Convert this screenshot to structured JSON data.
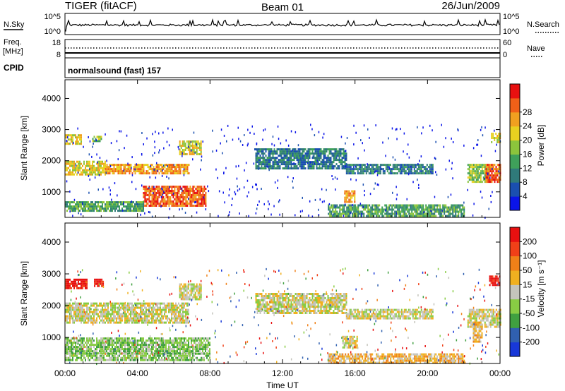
{
  "header": {
    "radar": "TIGER (fitACF)",
    "beam": "Beam 01",
    "date": "26/Jun/2009"
  },
  "strip_panels": {
    "nsky": {
      "label": "N.Sky",
      "tick_top": "10^5",
      "tick_bottom": "10^0"
    },
    "nsearch": {
      "label": "N.Search",
      "tick_top": "10^5",
      "tick_bottom": "10^0"
    },
    "freq": {
      "label_line1": "Freq.",
      "label_line2": "[MHz]",
      "tick_top": "18",
      "tick_bottom": "8"
    },
    "nave": {
      "label": "Nave",
      "tick_top": "60",
      "tick_bottom": "0"
    },
    "cpid": {
      "label": "CPID",
      "value": "normalsound (fast) 157"
    }
  },
  "chart_data": [
    {
      "type": "heatmap",
      "name": "power",
      "x_ticks": [
        "00:00",
        "04:00",
        "08:00",
        "12:00",
        "16:00",
        "20:00",
        "00:00"
      ],
      "x_range_hours": [
        0,
        24
      ],
      "ylabel": "Slant Range [km]",
      "y_ticks": [
        "1000",
        "2000",
        "3000",
        "4000"
      ],
      "ylim": [
        180,
        4600
      ],
      "colorbar_label": "Power [dB]",
      "colorbar_ticks": [
        "4",
        "8",
        "12",
        "16",
        "20",
        "24",
        "28"
      ],
      "colors": [
        "#0a14e8",
        "#1a4fb0",
        "#2f7a7a",
        "#3fa05a",
        "#8cc43c",
        "#e8d020",
        "#f0a020",
        "#f06018",
        "#e81010"
      ],
      "echo_regions": [
        {
          "t": [
            0.0,
            2.2
          ],
          "r": [
            1580,
            2000
          ],
          "level": 5
        },
        {
          "t": [
            2.2,
            6.8
          ],
          "r": [
            1580,
            1900
          ],
          "level": 6
        },
        {
          "t": [
            0.0,
            0.9
          ],
          "r": [
            2550,
            2850
          ],
          "level": 5
        },
        {
          "t": [
            1.5,
            2.0
          ],
          "r": [
            2650,
            2800
          ],
          "level": 4
        },
        {
          "t": [
            4.3,
            7.8
          ],
          "r": [
            530,
            1200
          ],
          "level": 7
        },
        {
          "t": [
            0.0,
            4.3
          ],
          "r": [
            400,
            700
          ],
          "level": 3
        },
        {
          "t": [
            6.3,
            7.5
          ],
          "r": [
            2200,
            2650
          ],
          "level": 5
        },
        {
          "t": [
            10.5,
            15.5
          ],
          "r": [
            1750,
            2400
          ],
          "level": 2
        },
        {
          "t": [
            15.5,
            20.3
          ],
          "r": [
            1600,
            1900
          ],
          "level": 2
        },
        {
          "t": [
            15.4,
            16.0
          ],
          "r": [
            700,
            1050
          ],
          "level": 6
        },
        {
          "t": [
            14.5,
            22.0
          ],
          "r": [
            200,
            600
          ],
          "level": 3
        },
        {
          "t": [
            22.2,
            23.3
          ],
          "r": [
            1350,
            1900
          ],
          "level": 4
        },
        {
          "t": [
            23.2,
            24.0
          ],
          "r": [
            1350,
            1900
          ],
          "level": 7
        },
        {
          "t": [
            23.5,
            24.0
          ],
          "r": [
            2600,
            2900
          ],
          "level": 5
        }
      ]
    },
    {
      "type": "heatmap",
      "name": "velocity",
      "x_ticks": [
        "00:00",
        "04:00",
        "08:00",
        "12:00",
        "16:00",
        "20:00",
        "00:00"
      ],
      "x_range_hours": [
        0,
        24
      ],
      "xlabel": "Time UT",
      "ylabel": "Slant Range [km]",
      "y_ticks": [
        "1000",
        "2000",
        "3000",
        "4000"
      ],
      "ylim": [
        180,
        4600
      ],
      "colorbar_label": "Velocity [m s⁻¹]",
      "colorbar_ticks": [
        "200",
        "100",
        "50",
        "15",
        "-15",
        "-50",
        "-100",
        "-200"
      ],
      "colors": [
        "#1838d8",
        "#3060b0",
        "#40a040",
        "#88cc44",
        "#c4c4bc",
        "#f0b020",
        "#f08018",
        "#f04018",
        "#e81010"
      ],
      "echo_regions": [
        {
          "t": [
            0.0,
            6.8
          ],
          "r": [
            1500,
            2100
          ],
          "level": 4
        },
        {
          "t": [
            6.3,
            7.5
          ],
          "r": [
            2200,
            2700
          ],
          "level": 4
        },
        {
          "t": [
            0.0,
            1.2
          ],
          "r": [
            2550,
            2850
          ],
          "level": 8
        },
        {
          "t": [
            1.6,
            2.1
          ],
          "r": [
            2650,
            2850
          ],
          "level": 8
        },
        {
          "t": [
            0.0,
            8.0
          ],
          "r": [
            520,
            1000
          ],
          "level": 3
        },
        {
          "t": [
            0.0,
            8.0
          ],
          "r": [
            280,
            520
          ],
          "level": 3
        },
        {
          "t": [
            10.5,
            15.5
          ],
          "r": [
            1750,
            2400
          ],
          "level": 4
        },
        {
          "t": [
            15.5,
            20.3
          ],
          "r": [
            1600,
            1900
          ],
          "level": 4
        },
        {
          "t": [
            15.3,
            16.1
          ],
          "r": [
            700,
            1050
          ],
          "level": 4
        },
        {
          "t": [
            14.5,
            22.0
          ],
          "r": [
            200,
            500
          ],
          "level": 5
        },
        {
          "t": [
            22.2,
            24.0
          ],
          "r": [
            1350,
            1900
          ],
          "level": 4
        },
        {
          "t": [
            22.5,
            23.0
          ],
          "r": [
            900,
            1500
          ],
          "level": 5
        },
        {
          "t": [
            23.4,
            24.0
          ],
          "r": [
            2650,
            2950
          ],
          "level": 8
        }
      ]
    }
  ]
}
